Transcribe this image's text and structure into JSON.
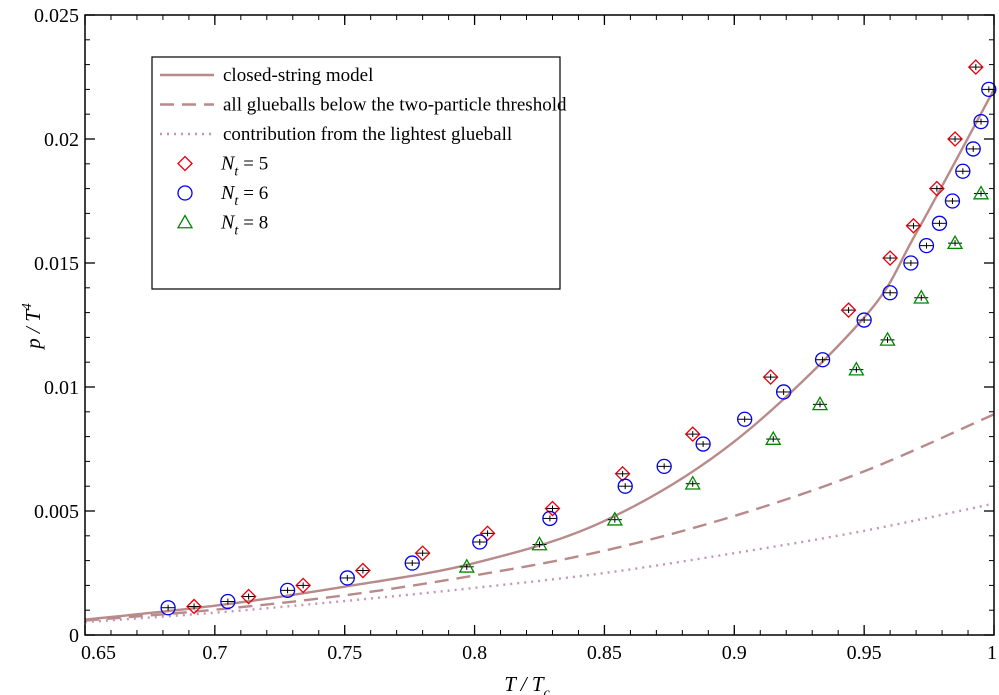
{
  "chart_data": {
    "type": "scatter",
    "xlabel": {
      "main": "T / T",
      "sub": "c"
    },
    "ylabel": {
      "main": "p / T",
      "sup": "4"
    },
    "xlim": [
      0.65,
      1.0
    ],
    "ylim": [
      0,
      0.025
    ],
    "x_ticks": [
      0.65,
      0.7,
      0.75,
      0.8,
      0.85,
      0.9,
      0.95,
      1.0
    ],
    "x_tick_labels": [
      "0.65",
      "0.7",
      "0.75",
      "0.8",
      "0.85",
      "0.9",
      "0.95",
      "1"
    ],
    "y_ticks": [
      0,
      0.005,
      0.01,
      0.015,
      0.02,
      0.025
    ],
    "y_tick_labels": [
      "0",
      "0.005",
      "0.01",
      "0.015",
      "0.02",
      "0.025"
    ],
    "grid": false,
    "legend_position": "top-left",
    "curves": [
      {
        "name": "closed-string model",
        "style": "solid",
        "color": "#b88a8a",
        "x": [
          0.65,
          0.7,
          0.75,
          0.8,
          0.85,
          0.9,
          0.95,
          0.97,
          1.0
        ],
        "y": [
          0.00062,
          0.00118,
          0.00195,
          0.0029,
          0.0046,
          0.0078,
          0.0128,
          0.0162,
          0.022
        ]
      },
      {
        "name": "all glueballs below the two-particle threshold",
        "style": "dashed",
        "color": "#b88a8a",
        "x": [
          0.65,
          0.7,
          0.75,
          0.8,
          0.85,
          0.9,
          0.95,
          1.0
        ],
        "y": [
          0.00058,
          0.00102,
          0.0016,
          0.0024,
          0.0034,
          0.0048,
          0.0066,
          0.0089
        ]
      },
      {
        "name": "contribution from the lightest glueball",
        "style": "dotted",
        "color": "#c496b4",
        "x": [
          0.65,
          0.7,
          0.75,
          0.8,
          0.85,
          0.9,
          0.95,
          1.0
        ],
        "y": [
          0.00052,
          0.0009,
          0.00137,
          0.0019,
          0.0025,
          0.0033,
          0.0042,
          0.0053
        ]
      }
    ],
    "series": [
      {
        "name": "N_t = 5",
        "label": "N",
        "sub": "t",
        "value": "= 5",
        "marker": "diamond",
        "color": "#e8000b",
        "x": [
          0.692,
          0.713,
          0.734,
          0.757,
          0.78,
          0.805,
          0.83,
          0.857,
          0.884,
          0.914,
          0.944,
          0.96,
          0.969,
          0.978,
          0.985,
          0.993
        ],
        "y": [
          0.00115,
          0.00155,
          0.002,
          0.0026,
          0.0033,
          0.0041,
          0.0051,
          0.0065,
          0.0081,
          0.0104,
          0.0131,
          0.0152,
          0.0165,
          0.018,
          0.02,
          0.0229
        ]
      },
      {
        "name": "N_t = 6",
        "label": "N",
        "sub": "t",
        "value": "= 6",
        "marker": "circle",
        "color": "#0000ee",
        "x": [
          0.682,
          0.705,
          0.728,
          0.751,
          0.776,
          0.802,
          0.829,
          0.858,
          0.873,
          0.888,
          0.904,
          0.919,
          0.934,
          0.95,
          0.96,
          0.968,
          0.974,
          0.979,
          0.984,
          0.988,
          0.992,
          0.995,
          0.998
        ],
        "y": [
          0.0011,
          0.00135,
          0.0018,
          0.0023,
          0.0029,
          0.00375,
          0.0047,
          0.006,
          0.0068,
          0.0077,
          0.0087,
          0.0098,
          0.0111,
          0.0127,
          0.0138,
          0.015,
          0.0157,
          0.0166,
          0.0175,
          0.0187,
          0.0196,
          0.0207,
          0.022
        ]
      },
      {
        "name": "N_t = 8",
        "label": "N",
        "sub": "t",
        "value": "= 8",
        "marker": "triangle",
        "color": "#008800",
        "x": [
          0.797,
          0.825,
          0.854,
          0.884,
          0.915,
          0.933,
          0.947,
          0.959,
          0.972,
          0.985,
          0.995
        ],
        "y": [
          0.00275,
          0.00365,
          0.00465,
          0.0061,
          0.0079,
          0.0093,
          0.0107,
          0.0119,
          0.0136,
          0.0158,
          0.0178
        ]
      }
    ]
  }
}
